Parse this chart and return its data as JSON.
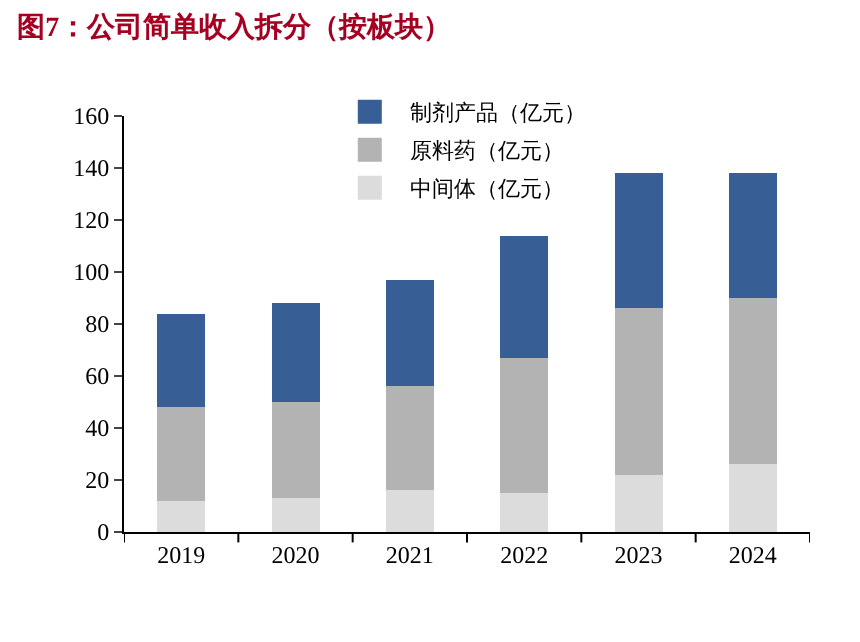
{
  "chart_data": {
    "type": "bar",
    "title": "图7：公司简单收入拆分（按板块）",
    "stacked": true,
    "categories": [
      "2019",
      "2020",
      "2021",
      "2022",
      "2023",
      "2024"
    ],
    "series": [
      {
        "name": "中间体（亿元）",
        "color": "#dcdcdc",
        "values": [
          12,
          13,
          16,
          15,
          22,
          26
        ]
      },
      {
        "name": "原料药（亿元）",
        "color": "#b3b3b3",
        "values": [
          36,
          37,
          40,
          52,
          64,
          64
        ]
      },
      {
        "name": "制剂产品（亿元）",
        "color": "#375e95",
        "values": [
          36,
          38,
          41,
          47,
          52,
          48
        ]
      }
    ],
    "ylim": [
      0,
      160
    ],
    "yticks": [
      0,
      20,
      40,
      60,
      80,
      100,
      120,
      140,
      160
    ],
    "grid": false,
    "legend": "top left"
  }
}
